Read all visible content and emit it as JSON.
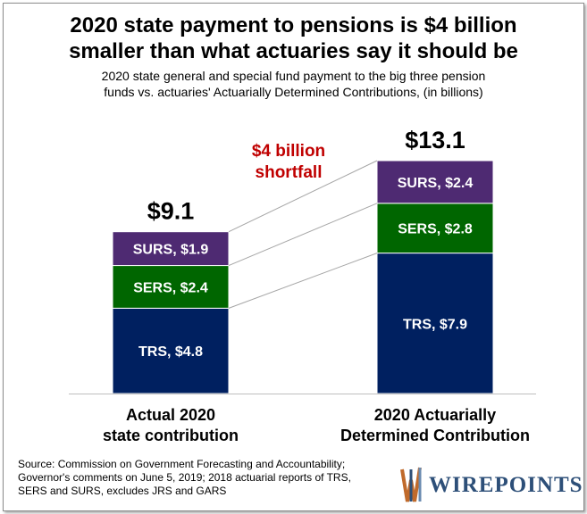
{
  "title_line1": "2020 state payment to pensions is $4 billion",
  "title_line2": "smaller than what actuaries say it should be",
  "subtitle_line1": "2020 state general and special fund payment to the big three pension",
  "subtitle_line2": "funds vs. actuaries' Actuarially Determined Contributions, (in billions)",
  "chart_data": {
    "type": "bar",
    "stacked": true,
    "categories": [
      [
        "Actual 2020",
        "state contribution"
      ],
      [
        "2020 Actuarially",
        "Determined Contribution"
      ]
    ],
    "series": [
      {
        "name": "TRS",
        "values": [
          4.8,
          7.9
        ],
        "labels": [
          "TRS, $4.8",
          "TRS, $7.9"
        ],
        "color": "#002060"
      },
      {
        "name": "SERS",
        "values": [
          2.4,
          2.8
        ],
        "labels": [
          "SERS, $2.4",
          "SERS, $2.8"
        ],
        "color": "#006600"
      },
      {
        "name": "SURS",
        "values": [
          1.9,
          2.4
        ],
        "labels": [
          "SURS, $1.9",
          "SURS, $2.4"
        ],
        "color": "#4e2a72"
      }
    ],
    "totals": [
      "$9.1",
      "$13.1"
    ],
    "annotation": [
      "$4 billion",
      "shortfall"
    ],
    "annotation_color": "#c00000",
    "ylim": [
      0,
      14
    ],
    "grid": false
  },
  "source": [
    "Source: Commission on Government Forecasting and Accountability;",
    "Governor's comments on June 5, 2019; 2018 actuarial reports of TRS,",
    "SERS and SURS, excludes JRS and GARS"
  ],
  "logo": {
    "text": "WIREPOINTS",
    "colors": [
      "#c06a2b",
      "#2d4f78",
      "#6a8bb0"
    ]
  }
}
